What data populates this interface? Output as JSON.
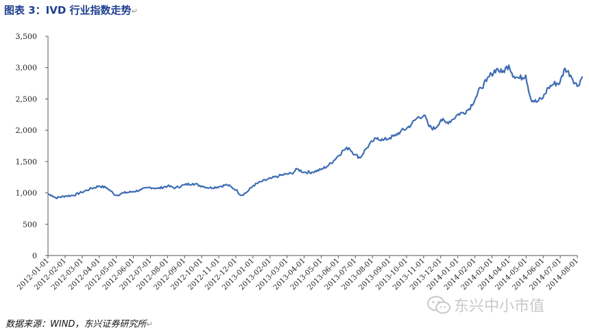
{
  "title": "图表 3：IVD 行业指数走势",
  "source": "数据来源：WIND，东兴证券研究所",
  "watermark": "东兴中小市值",
  "para_mark": "↵",
  "colors": {
    "line": "#3d6cb3",
    "title": "#1f3f8f",
    "axis": "#555555"
  },
  "chart_data": {
    "type": "line",
    "title": "",
    "xlabel": "",
    "ylabel": "",
    "ylim": [
      0,
      3500
    ],
    "yticks": [
      0,
      500,
      1000,
      1500,
      2000,
      2500,
      3000,
      3500
    ],
    "ytick_labels": [
      "0",
      "500",
      "1,000",
      "1,500",
      "2,000",
      "2,500",
      "3,000",
      "3,500"
    ],
    "xtick_labels": [
      "2012-01-01",
      "2012-02-01",
      "2012-03-01",
      "2012-04-01",
      "2012-05-01",
      "2012-06-01",
      "2012-07-01",
      "2012-08-01",
      "2012-09-01",
      "2012-10-01",
      "2012-11-01",
      "2012-12-01",
      "2013-01-01",
      "2013-02-01",
      "2013-03-01",
      "2013-04-01",
      "2013-05-01",
      "2013-06-01",
      "2013-07-01",
      "2013-08-01",
      "2013-09-01",
      "2013-10-01",
      "2013-11-01",
      "2013-12-01",
      "2014-01-01",
      "2014-02-01",
      "2014-03-01",
      "2014-04-01",
      "2014-05-01",
      "2014-06-01",
      "2014-07-01",
      "2014-08-01"
    ],
    "grid": false,
    "series": [
      {
        "x": [
          "2012-01-01",
          "2012-01-08",
          "2012-01-15",
          "2012-02-01",
          "2012-02-15",
          "2012-03-01",
          "2012-03-15",
          "2012-04-01",
          "2012-04-15",
          "2012-05-01",
          "2012-05-15",
          "2012-06-01",
          "2012-06-15",
          "2012-07-01",
          "2012-07-15",
          "2012-08-01",
          "2012-08-15",
          "2012-09-01",
          "2012-09-15",
          "2012-10-01",
          "2012-10-15",
          "2012-11-01",
          "2012-11-15",
          "2012-12-01",
          "2012-12-10",
          "2012-12-20",
          "2013-01-01",
          "2013-01-15",
          "2013-02-01",
          "2013-02-15",
          "2013-03-01",
          "2013-03-10",
          "2013-03-20",
          "2013-04-01",
          "2013-04-15",
          "2013-05-01",
          "2013-05-15",
          "2013-06-01",
          "2013-06-10",
          "2013-06-20",
          "2013-07-01",
          "2013-07-10",
          "2013-07-20",
          "2013-08-01",
          "2013-08-10",
          "2013-08-20",
          "2013-09-01",
          "2013-09-10",
          "2013-09-20",
          "2013-10-01",
          "2013-10-10",
          "2013-10-20",
          "2013-11-01",
          "2013-11-10",
          "2013-11-20",
          "2013-12-01",
          "2013-12-10",
          "2013-12-20",
          "2014-01-01",
          "2014-01-10",
          "2014-01-20",
          "2014-02-01",
          "2014-02-10",
          "2014-02-20",
          "2014-03-01",
          "2014-03-10",
          "2014-03-20",
          "2014-04-01",
          "2014-04-10",
          "2014-04-20",
          "2014-05-01",
          "2014-05-10",
          "2014-05-20",
          "2014-06-01",
          "2014-06-10",
          "2014-06-20",
          "2014-07-01",
          "2014-07-10",
          "2014-07-20",
          "2014-08-01",
          "2014-08-10"
        ],
        "y": [
          980,
          960,
          920,
          950,
          960,
          1010,
          1060,
          1110,
          1080,
          960,
          1000,
          1020,
          1050,
          1090,
          1070,
          1110,
          1080,
          1130,
          1150,
          1110,
          1080,
          1100,
          1130,
          1050,
          960,
          1010,
          1120,
          1180,
          1230,
          1270,
          1300,
          1310,
          1380,
          1330,
          1330,
          1370,
          1440,
          1590,
          1680,
          1720,
          1610,
          1560,
          1700,
          1820,
          1880,
          1840,
          1880,
          1910,
          1980,
          2030,
          2100,
          2200,
          2240,
          2060,
          2020,
          2170,
          2120,
          2160,
          2260,
          2280,
          2340,
          2520,
          2680,
          2780,
          2900,
          2980,
          2920,
          3040,
          2860,
          2830,
          2880,
          2500,
          2450,
          2520,
          2680,
          2740,
          2760,
          2990,
          2880,
          2700,
          2860
        ]
      }
    ]
  }
}
